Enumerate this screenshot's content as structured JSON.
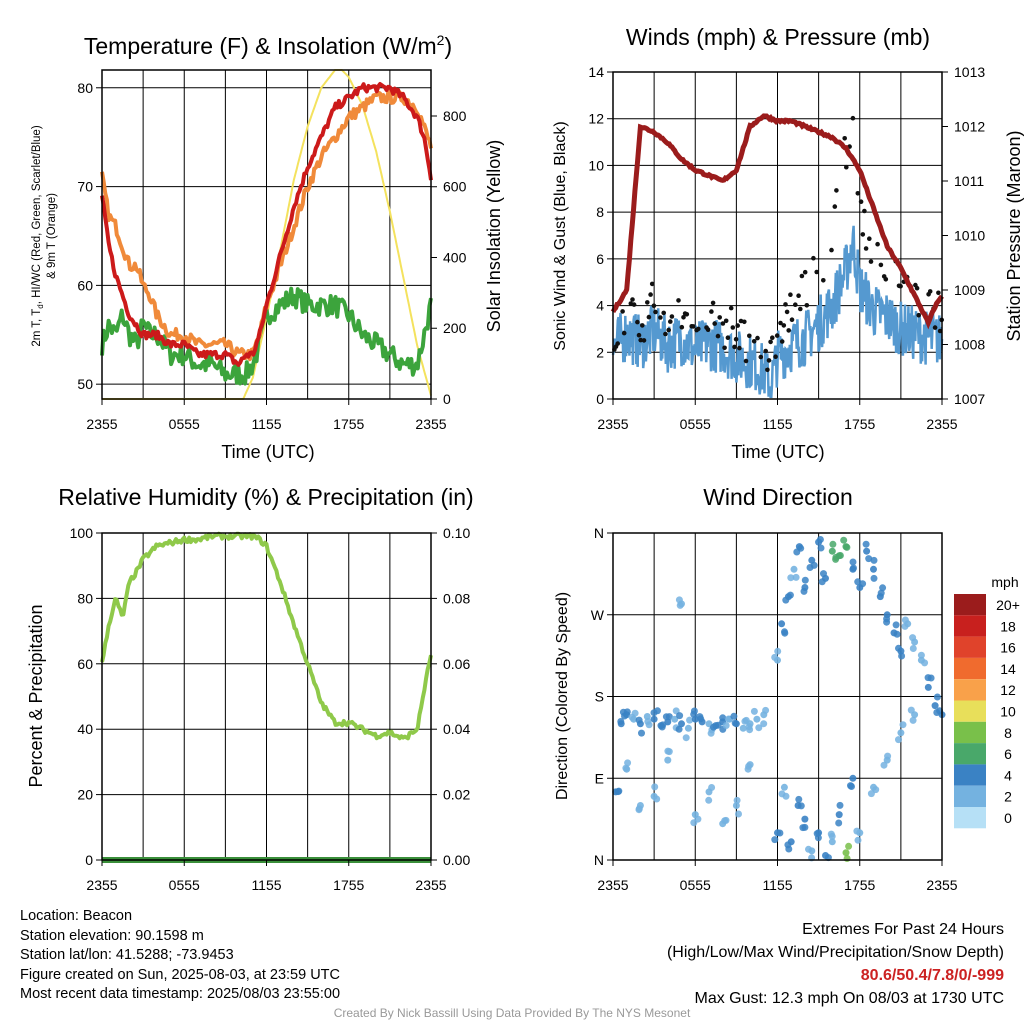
{
  "panels": {
    "temp": {
      "title": "Temperature (F) & Insolation (W/m",
      "title_sup": "2",
      "title_end": ")",
      "ylabel_lines": [
        "2m T, T",
        "d",
        ", HI/WC (Red, Green, Scarlet/Blue)",
        "& 9m T (Orange)"
      ],
      "ylabel_right": "Solar Insolation (Yellow)",
      "xlabel": "Time (UTC)"
    },
    "wind": {
      "title": "Winds (mph) & Pressure (mb)",
      "ylabel": "Sonic Wind & Gust (Blue, Black)",
      "ylabel_right": "Station Pressure (Maroon)",
      "xlabel": "Time (UTC)"
    },
    "rh": {
      "title": "Relative Humidity (%) & Precipitation (in)",
      "ylabel": "Percent & Precipitation"
    },
    "dir": {
      "title": "Wind Direction",
      "ylabel": "Direction (Colored By Speed)",
      "legend_title": "mph",
      "legend_labels": [
        "20+",
        "18",
        "16",
        "14",
        "12",
        "10",
        "8",
        "6",
        "4",
        "2",
        "0"
      ],
      "legend_colors": [
        "#9b1c1c",
        "#c8201e",
        "#e0432b",
        "#f06b2e",
        "#f9a14a",
        "#e8df5a",
        "#79c04a",
        "#49a86a",
        "#3a82c4",
        "#74b2e0",
        "#b6e0f6"
      ]
    }
  },
  "chart_data": [
    {
      "type": "line",
      "title": "Temperature (F) & Insolation (W/m2)",
      "xlabel": "Time (UTC)",
      "ylabel": "2m T, Td, HI/WC (Red, Green, Scarlet/Blue) & 9m T (Orange)",
      "ylabel_right": "Solar Insolation (Yellow)",
      "x_ticks": [
        "2355",
        "0555",
        "1155",
        "1755",
        "2355"
      ],
      "x_hours": [
        0,
        6,
        12,
        18,
        24
      ],
      "ylim": [
        48.5,
        81.8
      ],
      "yticks": [
        50,
        60,
        70,
        80
      ],
      "ylim_right": [
        0,
        930
      ],
      "yticks_right": [
        0,
        200,
        400,
        600,
        800
      ],
      "grid": true,
      "series": [
        {
          "name": "2m T",
          "color": "#cc1a1a",
          "axis": "left",
          "x": [
            0,
            0.5,
            1,
            1.5,
            2,
            2.5,
            3,
            3.5,
            4,
            5,
            6,
            7,
            8,
            9,
            10,
            10.5,
            11,
            11.5,
            12,
            13,
            14,
            15,
            16,
            17,
            18,
            19,
            20,
            21,
            22,
            23,
            23.5,
            24
          ],
          "y": [
            69,
            64,
            61,
            59,
            57,
            56,
            55,
            55,
            55,
            54,
            54,
            53,
            53,
            53,
            52,
            53,
            53,
            55,
            58,
            63,
            68,
            72,
            75,
            78,
            79,
            80,
            80,
            80,
            79,
            77,
            75,
            71
          ]
        },
        {
          "name": "9m T",
          "color": "#f08a3a",
          "axis": "left",
          "x": [
            0,
            0.5,
            1,
            1.5,
            2,
            2.5,
            3,
            3.5,
            4,
            5,
            6,
            7,
            8,
            9,
            10,
            10.5,
            11,
            11.5,
            12,
            13,
            14,
            15,
            16,
            17,
            18,
            19,
            20,
            21,
            22,
            23,
            23.5,
            24
          ],
          "y": [
            71,
            67,
            66,
            64,
            62,
            62,
            60,
            59,
            57,
            55,
            55,
            54,
            54,
            54,
            53,
            53,
            53,
            55,
            58,
            62,
            66,
            70,
            73,
            75,
            77,
            78,
            79,
            79,
            79,
            78,
            76,
            74
          ]
        },
        {
          "name": "Td",
          "color": "#3ca43c",
          "axis": "left",
          "x": [
            0,
            0.5,
            1,
            1.5,
            2,
            2.5,
            3,
            3.5,
            4,
            5,
            6,
            7,
            8,
            9,
            10,
            10.5,
            11,
            11.5,
            12,
            13,
            14,
            15,
            16,
            17,
            18,
            19,
            20,
            21,
            22,
            23,
            23.5,
            24
          ],
          "y": [
            54,
            56,
            55,
            57,
            55,
            54,
            56,
            55,
            55,
            53,
            53,
            52,
            52,
            51,
            51,
            51,
            52,
            54,
            57,
            58,
            59,
            58,
            58,
            58,
            57,
            55,
            54,
            53,
            52,
            52,
            55,
            58
          ]
        },
        {
          "name": "Solar Insolation",
          "color": "#f4e25e",
          "axis": "right",
          "x": [
            0,
            2,
            4,
            6,
            8,
            9,
            10,
            10.3,
            11,
            12,
            13,
            14,
            15,
            16,
            17,
            17.5,
            18,
            19,
            20,
            21,
            22,
            23,
            24
          ],
          "y": [
            0,
            0,
            0,
            0,
            0,
            0,
            0,
            0,
            60,
            230,
            420,
            620,
            770,
            880,
            930,
            930,
            910,
            830,
            700,
            530,
            340,
            150,
            10
          ]
        }
      ]
    },
    {
      "type": "scatter",
      "title": "Winds (mph) & Pressure (mb)",
      "xlabel": "Time (UTC)",
      "ylabel": "Sonic Wind & Gust (Blue, Black)",
      "ylabel_right": "Station Pressure (Maroon)",
      "x_ticks": [
        "2355",
        "0555",
        "1155",
        "1755",
        "2355"
      ],
      "x_hours": [
        0,
        6,
        12,
        18,
        24
      ],
      "ylim": [
        0,
        14
      ],
      "yticks": [
        0,
        2,
        4,
        6,
        8,
        10,
        12,
        14
      ],
      "ylim_right": [
        1007,
        1013
      ],
      "yticks_right": [
        1007,
        1008,
        1009,
        1010,
        1011,
        1012,
        1013
      ],
      "grid": true,
      "series": [
        {
          "name": "Sonic Wind",
          "color": "#5599d0",
          "axis": "left",
          "x": [
            0,
            1,
            2,
            3,
            4,
            5,
            6,
            7,
            8,
            9,
            10,
            11,
            11.5,
            12,
            13,
            14,
            15,
            16,
            17,
            17.5,
            18,
            19,
            20,
            21,
            22,
            23,
            24
          ],
          "y": [
            2.2,
            2.8,
            2.4,
            2.9,
            2.3,
            2.6,
            2.1,
            2.4,
            2.2,
            1.8,
            1.6,
            1.2,
            0.6,
            1.8,
            2.3,
            2.6,
            3.2,
            4.0,
            5.5,
            6.8,
            4.8,
            3.8,
            3.5,
            3.0,
            2.8,
            2.6,
            2.5
          ]
        },
        {
          "name": "Gust",
          "color": "#111111",
          "axis": "left",
          "x": [
            0,
            1,
            2,
            3,
            4,
            5,
            6,
            7,
            8,
            9,
            10,
            11,
            11.5,
            12,
            13,
            14,
            15,
            16,
            16.5,
            17,
            17.5,
            18,
            19,
            20,
            21,
            22,
            23,
            24
          ],
          "y": [
            3.0,
            3.5,
            3.2,
            4.1,
            3.4,
            3.8,
            3.0,
            3.6,
            3.1,
            2.8,
            2.5,
            2.2,
            1.6,
            3.0,
            3.8,
            4.5,
            5.6,
            7.0,
            8.8,
            10.5,
            11.5,
            8.5,
            6.2,
            5.5,
            4.6,
            4.0,
            3.8,
            3.5
          ]
        },
        {
          "name": "Station Pressure",
          "color": "#9b1c1c",
          "axis": "right",
          "x": [
            0,
            0.5,
            1,
            2,
            3,
            4,
            5,
            6,
            7,
            8,
            9,
            10,
            11,
            12,
            13,
            14,
            15,
            16,
            17,
            18,
            19,
            20,
            21,
            22,
            23,
            23.5,
            24
          ],
          "y": [
            1008.6,
            1008.8,
            1009.0,
            1012.0,
            1011.9,
            1011.7,
            1011.4,
            1011.2,
            1011.1,
            1011.0,
            1011.2,
            1012.0,
            1012.2,
            1012.1,
            1012.1,
            1012.0,
            1011.9,
            1011.8,
            1011.6,
            1011.2,
            1010.5,
            1009.8,
            1009.4,
            1008.9,
            1008.4,
            1008.7,
            1008.9
          ]
        }
      ]
    },
    {
      "type": "line",
      "title": "Relative Humidity (%) & Precipitation (in)",
      "ylabel": "Percent & Precipitation",
      "x_ticks": [
        "2355",
        "0555",
        "1155",
        "1755",
        "2355"
      ],
      "x_hours": [
        0,
        6,
        12,
        18,
        24
      ],
      "ylim": [
        0,
        100
      ],
      "yticks": [
        0,
        20,
        40,
        60,
        80,
        100
      ],
      "ylim_right": [
        0,
        0.1
      ],
      "yticks_right": [
        "0.00",
        "0.02",
        "0.04",
        "0.06",
        "0.08",
        "0.10"
      ],
      "grid": true,
      "series": [
        {
          "name": "Relative Humidity",
          "color": "#8fc94a",
          "axis": "left",
          "x": [
            0,
            0.5,
            1,
            1.5,
            2,
            2.5,
            3,
            3.5,
            4,
            5,
            6,
            7,
            8,
            9,
            10,
            11,
            11.5,
            12,
            13,
            14,
            15,
            16,
            17,
            18,
            19,
            20,
            21,
            22,
            23,
            23.5,
            24
          ],
          "y": [
            60,
            72,
            80,
            74,
            85,
            88,
            92,
            94,
            96,
            97,
            98,
            98,
            99,
            99,
            99,
            99,
            98,
            96,
            85,
            72,
            60,
            48,
            42,
            42,
            40,
            38,
            39,
            37,
            40,
            52,
            63
          ]
        },
        {
          "name": "Precipitation",
          "color": "#3a8f3a",
          "axis": "right",
          "x": [
            0,
            24
          ],
          "y": [
            0,
            0
          ]
        }
      ]
    },
    {
      "type": "scatter",
      "title": "Wind Direction",
      "ylabel": "Direction (Colored By Speed)",
      "x_ticks": [
        "2355",
        "0555",
        "1155",
        "1755",
        "2355"
      ],
      "x_hours": [
        0,
        6,
        12,
        18,
        24
      ],
      "ytick_labels": [
        "N",
        "E",
        "S",
        "W",
        "N"
      ],
      "ylim": [
        0,
        360
      ],
      "yticks": [
        0,
        90,
        180,
        270,
        360
      ],
      "grid": true,
      "points": [
        [
          0.2,
          75,
          3
        ],
        [
          0.6,
          150,
          3
        ],
        [
          1.0,
          160,
          3
        ],
        [
          1.5,
          155,
          2
        ],
        [
          2.0,
          150,
          3
        ],
        [
          2.5,
          158,
          2
        ],
        [
          3.0,
          155,
          3
        ],
        [
          3.5,
          148,
          3
        ],
        [
          4.0,
          152,
          3
        ],
        [
          4.5,
          155,
          2
        ],
        [
          5.0,
          150,
          3
        ],
        [
          5.5,
          145,
          2
        ],
        [
          6.0,
          155,
          3
        ],
        [
          6.5,
          152,
          3
        ],
        [
          7.0,
          150,
          2
        ],
        [
          7.5,
          148,
          3
        ],
        [
          8.0,
          152,
          3
        ],
        [
          8.5,
          155,
          2
        ],
        [
          9.0,
          150,
          3
        ],
        [
          9.5,
          145,
          2
        ],
        [
          10.0,
          150,
          2
        ],
        [
          10.5,
          155,
          2
        ],
        [
          11.0,
          160,
          2
        ],
        [
          5.0,
          282,
          1
        ],
        [
          1.0,
          100,
          1
        ],
        [
          2.0,
          60,
          2
        ],
        [
          3.0,
          70,
          2
        ],
        [
          4.0,
          110,
          2
        ],
        [
          6.0,
          50,
          2
        ],
        [
          7.0,
          75,
          2
        ],
        [
          8.0,
          40,
          2
        ],
        [
          9.0,
          60,
          1
        ],
        [
          10.0,
          105,
          1
        ],
        [
          12.0,
          30,
          3
        ],
        [
          12.5,
          80,
          2
        ],
        [
          13.0,
          20,
          3
        ],
        [
          13.5,
          60,
          3
        ],
        [
          14.0,
          45,
          4
        ],
        [
          14.5,
          10,
          2
        ],
        [
          15.0,
          30,
          4
        ],
        [
          15.5,
          5,
          3
        ],
        [
          16.0,
          20,
          2
        ],
        [
          16.5,
          50,
          4
        ],
        [
          17.0,
          8,
          7
        ],
        [
          17.5,
          90,
          4
        ],
        [
          12.0,
          220,
          2
        ],
        [
          12.3,
          260,
          3
        ],
        [
          12.8,
          290,
          3
        ],
        [
          13.2,
          320,
          2
        ],
        [
          13.6,
          345,
          3
        ],
        [
          14.0,
          300,
          3
        ],
        [
          14.5,
          330,
          4
        ],
        [
          15.0,
          350,
          4
        ],
        [
          15.5,
          310,
          4
        ],
        [
          16.0,
          340,
          5
        ],
        [
          16.5,
          335,
          6
        ],
        [
          17.0,
          345,
          5
        ],
        [
          17.5,
          320,
          4
        ],
        [
          18.0,
          300,
          3
        ],
        [
          18.5,
          340,
          4
        ],
        [
          19.0,
          320,
          3
        ],
        [
          19.5,
          290,
          3
        ],
        [
          20.0,
          270,
          4
        ],
        [
          20.5,
          250,
          3
        ],
        [
          21.0,
          230,
          3
        ],
        [
          21.5,
          260,
          2
        ],
        [
          22.0,
          240,
          2
        ],
        [
          22.5,
          220,
          2
        ],
        [
          23.0,
          190,
          3
        ],
        [
          23.5,
          170,
          3
        ],
        [
          24.0,
          160,
          3
        ],
        [
          18.0,
          30,
          2
        ],
        [
          19.0,
          80,
          2
        ],
        [
          20.0,
          110,
          1
        ],
        [
          21.0,
          140,
          2
        ],
        [
          22.0,
          160,
          1
        ]
      ]
    }
  ],
  "info_left": {
    "location": "Location: Beacon",
    "elevation": "Station elevation: 90.1598 m",
    "latlon": "Station lat/lon: 41.5288; -73.9453",
    "created": "Figure created on Sun, 2025-08-03, at 23:59 UTC",
    "recent": "Most recent data timestamp: 2025/08/03 23:55:00"
  },
  "info_right": {
    "extremes_title": "Extremes For Past 24 Hours",
    "extremes_legend": "(High/Low/Max Wind/Precipitation/Snow Depth)",
    "extremes_values": "80.6/50.4/7.8/0/-999",
    "max_gust": "Max Gust: 12.3 mph On 08/03 at 1730 UTC"
  },
  "credit": "Created By Nick Bassill Using Data Provided By The NYS Mesonet"
}
